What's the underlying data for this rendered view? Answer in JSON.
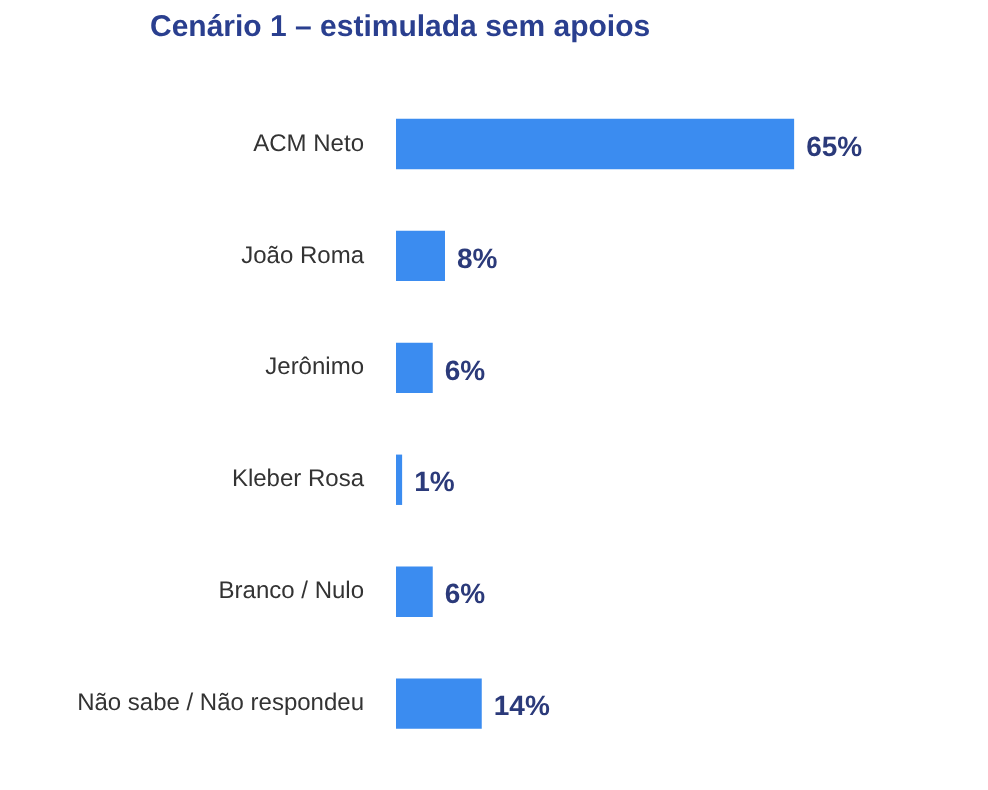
{
  "chart_data": {
    "type": "bar",
    "orientation": "horizontal",
    "title": "Cenário 1 – estimulada sem apoios",
    "categories": [
      "ACM Neto",
      "João Roma",
      "Jerônimo",
      "Kleber Rosa",
      "Branco / Nulo",
      "Não sabe / Não respondeu"
    ],
    "values": [
      65,
      8,
      6,
      1,
      6,
      14
    ],
    "value_labels": [
      "65%",
      "8%",
      "6%",
      "1%",
      "6%",
      "14%"
    ],
    "color": "#3b8cf0",
    "grid": false,
    "legend": false
  }
}
